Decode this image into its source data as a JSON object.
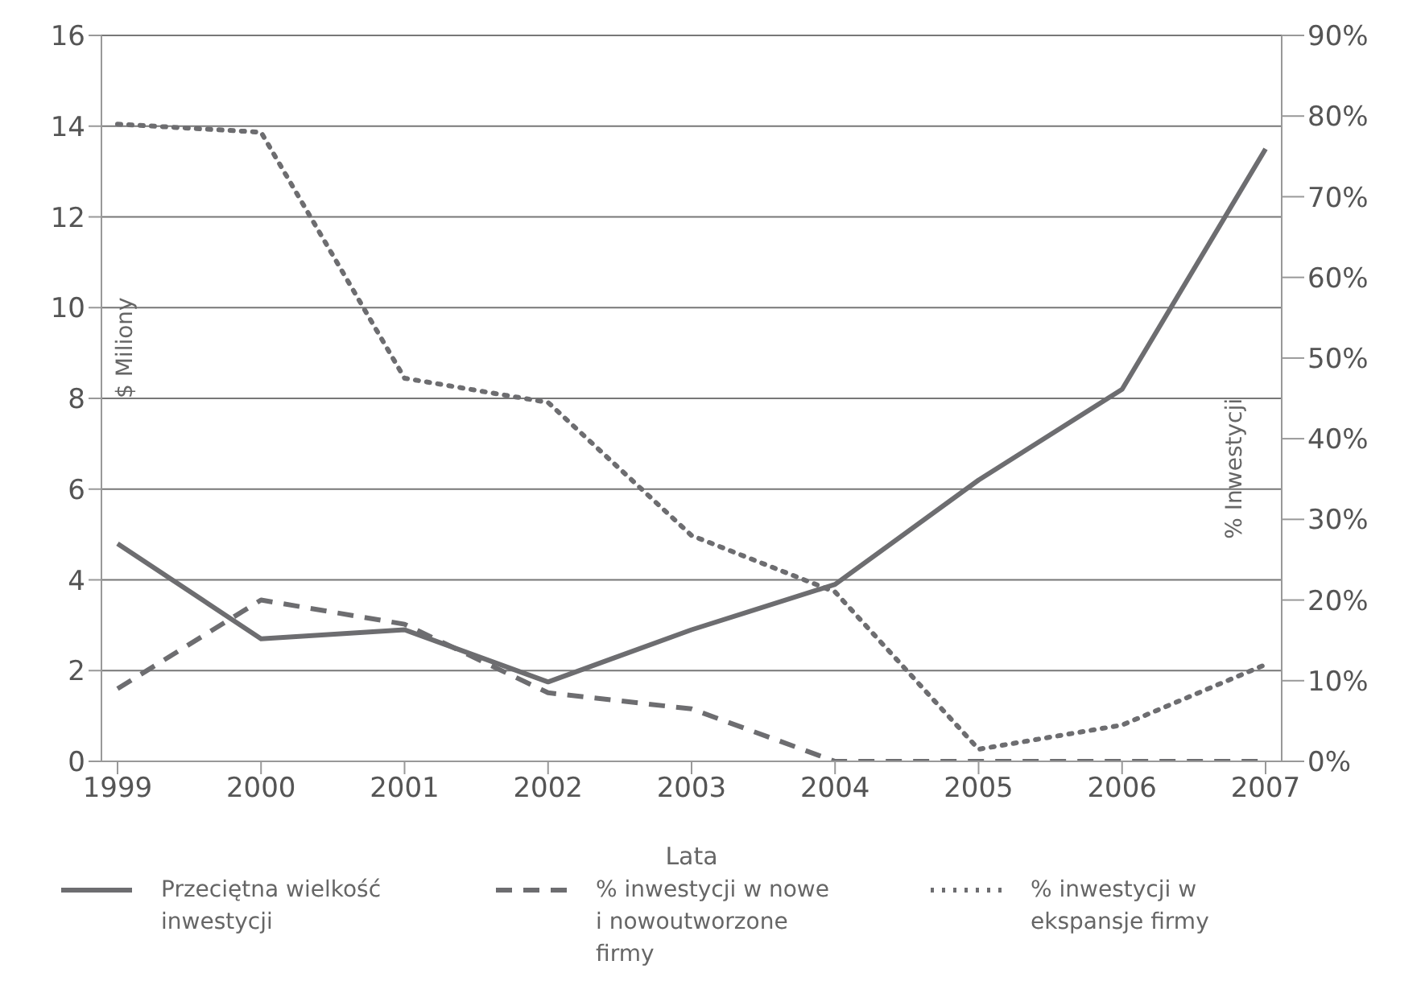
{
  "chart_data": {
    "type": "line",
    "xlabel": "Lata",
    "ylabel": "$ Miliony",
    "y2label": "% Inwestycji",
    "categories": [
      "1999",
      "2000",
      "2001",
      "2002",
      "2003",
      "2004",
      "2005",
      "2006",
      "2007"
    ],
    "series": [
      {
        "name": "Przeciętna wielkość inwestycji",
        "color": "#6d6d70",
        "line_style": "solid",
        "values": [
          4.8,
          2.7,
          2.9,
          1.75,
          2.9,
          3.9,
          6.2,
          8.2,
          13.5
        ]
      },
      {
        "name": "% inwestycji w nowe i nowoutworzone firmy",
        "color": "#6d6d70",
        "line_style": "dashed",
        "axis": "y2",
        "values": [
          9,
          20,
          17,
          8.5,
          6.5,
          0,
          0,
          0,
          0
        ]
      },
      {
        "name": "% inwestycji w ekspansje firmy",
        "color": "#6d6d70",
        "line_style": "dotted",
        "axis": "y2",
        "values": [
          79,
          78,
          47.5,
          44.5,
          28,
          21,
          1.5,
          4.5,
          12
        ]
      }
    ],
    "ylim": [
      0,
      16
    ],
    "yticks": [
      0,
      2,
      4,
      6,
      8,
      10,
      12,
      14,
      16
    ],
    "y2lim": [
      0,
      90
    ],
    "y2ticks": [
      {
        "value": 0,
        "label": "0%"
      },
      {
        "value": 10,
        "label": "10%"
      },
      {
        "value": 20,
        "label": "20%"
      },
      {
        "value": 30,
        "label": "30%"
      },
      {
        "value": 40,
        "label": "40%"
      },
      {
        "value": 50,
        "label": "50%"
      },
      {
        "value": 60,
        "label": "60%"
      },
      {
        "value": 70,
        "label": "70%"
      },
      {
        "value": 80,
        "label": "80%"
      },
      {
        "value": 90,
        "label": "90%"
      }
    ],
    "grid": "y",
    "legend": "bottom",
    "marker": "none"
  }
}
